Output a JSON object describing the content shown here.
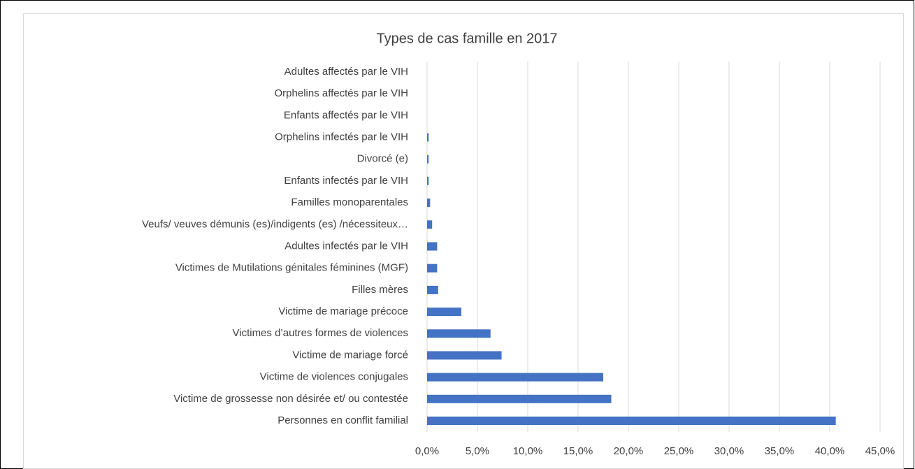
{
  "chart_data": {
    "type": "bar",
    "orientation": "horizontal",
    "title": "Types de cas famille en 2017",
    "categories": [
      "Adultes affectés par le VIH",
      "Orphelins affectés par le VIH",
      "Enfants affectés par le VIH",
      "Orphelins infectés par le VIH",
      "Divorcé (e)",
      "Enfants infectés par le VIH",
      "Familles monoparentales",
      "Veufs/ veuves démunis (es)/indigents (es) /nécessiteux…",
      "Adultes infectés par le VIH",
      "Victimes de Mutilations génitales féminines (MGF)",
      "Filles mères",
      "Victime de mariage précoce",
      "Victimes d’autres formes de violences",
      "Victime de mariage forcé",
      "Victime de violences conjugales",
      "Victime de grossesse non désirée et/ ou contestée",
      "Personnes en conflit familial"
    ],
    "values": [
      0,
      0,
      0,
      0.15,
      0.15,
      0.15,
      0.3,
      0.5,
      1.0,
      1.0,
      1.1,
      3.4,
      6.3,
      7.4,
      17.5,
      18.3,
      40.6
    ],
    "color": "#4472c4",
    "xlim": [
      0,
      45
    ],
    "xticks": [
      {
        "value": 0,
        "label": "0,0%"
      },
      {
        "value": 5,
        "label": "5,0%"
      },
      {
        "value": 10,
        "label": "10,0%"
      },
      {
        "value": 15,
        "label": "15,0%"
      },
      {
        "value": 20,
        "label": "20,0%"
      },
      {
        "value": 25,
        "label": "25,0%"
      },
      {
        "value": 30,
        "label": "30,0%"
      },
      {
        "value": 35,
        "label": "35,0%"
      },
      {
        "value": 40,
        "label": "40,0%"
      },
      {
        "value": 45,
        "label": "45,0%"
      }
    ],
    "grid": true
  }
}
